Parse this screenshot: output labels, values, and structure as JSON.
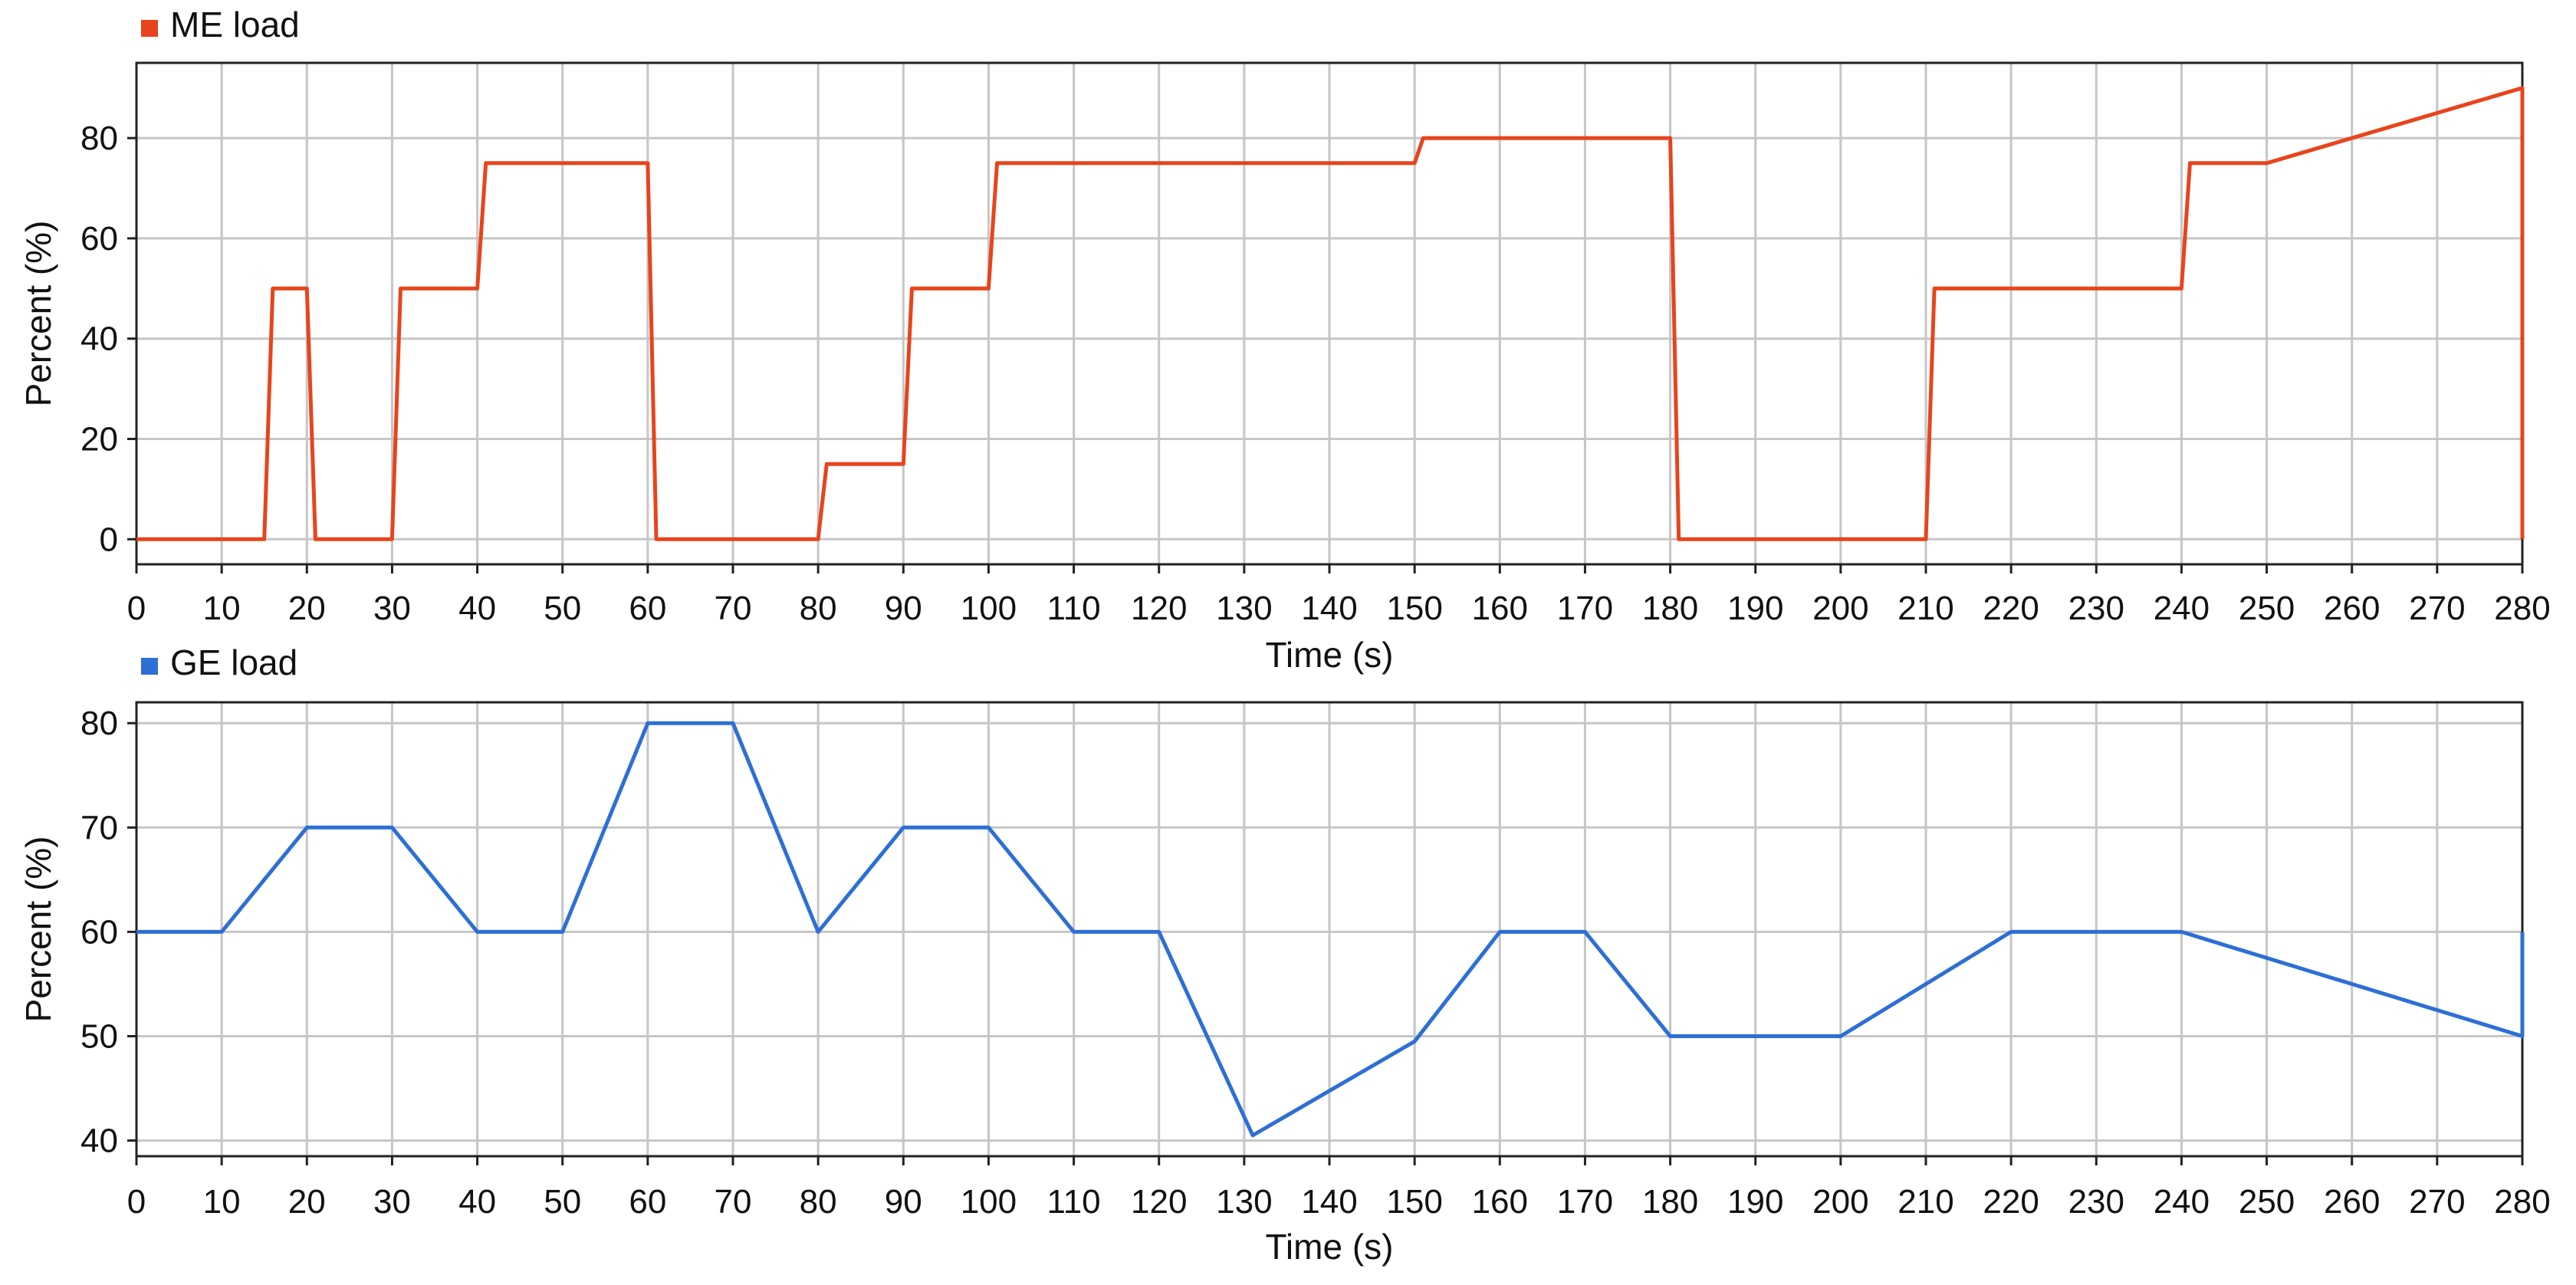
{
  "chart_data": [
    {
      "type": "line",
      "legend": {
        "position": "top-left",
        "entries": [
          "ME load"
        ]
      },
      "grid": true,
      "xlabel": "Time (s)",
      "ylabel": "Percent (%)",
      "xlim": [
        0,
        280
      ],
      "ylim": [
        -5,
        95
      ],
      "xticks": [
        0,
        10,
        20,
        30,
        40,
        50,
        60,
        70,
        80,
        90,
        100,
        110,
        120,
        130,
        140,
        150,
        160,
        170,
        180,
        190,
        200,
        210,
        220,
        230,
        240,
        250,
        260,
        270,
        280
      ],
      "yticks": [
        0,
        20,
        40,
        60,
        80
      ],
      "series": [
        {
          "name": "ME load",
          "color": "#e8441c",
          "points": [
            [
              0,
              0
            ],
            [
              15,
              0
            ],
            [
              16,
              50
            ],
            [
              20,
              50
            ],
            [
              21,
              0
            ],
            [
              30,
              0
            ],
            [
              31,
              50
            ],
            [
              40,
              50
            ],
            [
              41,
              75
            ],
            [
              60,
              75
            ],
            [
              61,
              0
            ],
            [
              80,
              0
            ],
            [
              81,
              15
            ],
            [
              90,
              15
            ],
            [
              91,
              50
            ],
            [
              100,
              50
            ],
            [
              101,
              75
            ],
            [
              150,
              75
            ],
            [
              151,
              80
            ],
            [
              180,
              80
            ],
            [
              181,
              0
            ],
            [
              210,
              0
            ],
            [
              211,
              50
            ],
            [
              240,
              50
            ],
            [
              241,
              75
            ],
            [
              250,
              75
            ],
            [
              280,
              90
            ],
            [
              280,
              0
            ]
          ]
        }
      ]
    },
    {
      "type": "line",
      "legend": {
        "position": "top-left",
        "entries": [
          "GE load"
        ]
      },
      "grid": true,
      "xlabel": "Time (s)",
      "ylabel": "Percent (%)",
      "xlim": [
        0,
        280
      ],
      "ylim": [
        38.5,
        82
      ],
      "xticks": [
        0,
        10,
        20,
        30,
        40,
        50,
        60,
        70,
        80,
        90,
        100,
        110,
        120,
        130,
        140,
        150,
        160,
        170,
        180,
        190,
        200,
        210,
        220,
        230,
        240,
        250,
        260,
        270,
        280
      ],
      "yticks": [
        40,
        50,
        60,
        70,
        80
      ],
      "series": [
        {
          "name": "GE load",
          "color": "#2e6fd6",
          "points": [
            [
              0,
              60
            ],
            [
              10,
              60
            ],
            [
              20,
              70
            ],
            [
              30,
              70
            ],
            [
              40,
              60
            ],
            [
              50,
              60
            ],
            [
              60,
              80
            ],
            [
              70,
              80
            ],
            [
              80,
              60
            ],
            [
              90,
              70
            ],
            [
              100,
              70
            ],
            [
              110,
              60
            ],
            [
              120,
              60
            ],
            [
              131,
              40.5
            ],
            [
              150,
              49.5
            ],
            [
              160,
              60
            ],
            [
              170,
              60
            ],
            [
              180,
              50
            ],
            [
              200,
              50
            ],
            [
              220,
              60
            ],
            [
              240,
              60
            ],
            [
              280,
              50
            ],
            [
              280,
              60
            ]
          ]
        }
      ]
    }
  ]
}
